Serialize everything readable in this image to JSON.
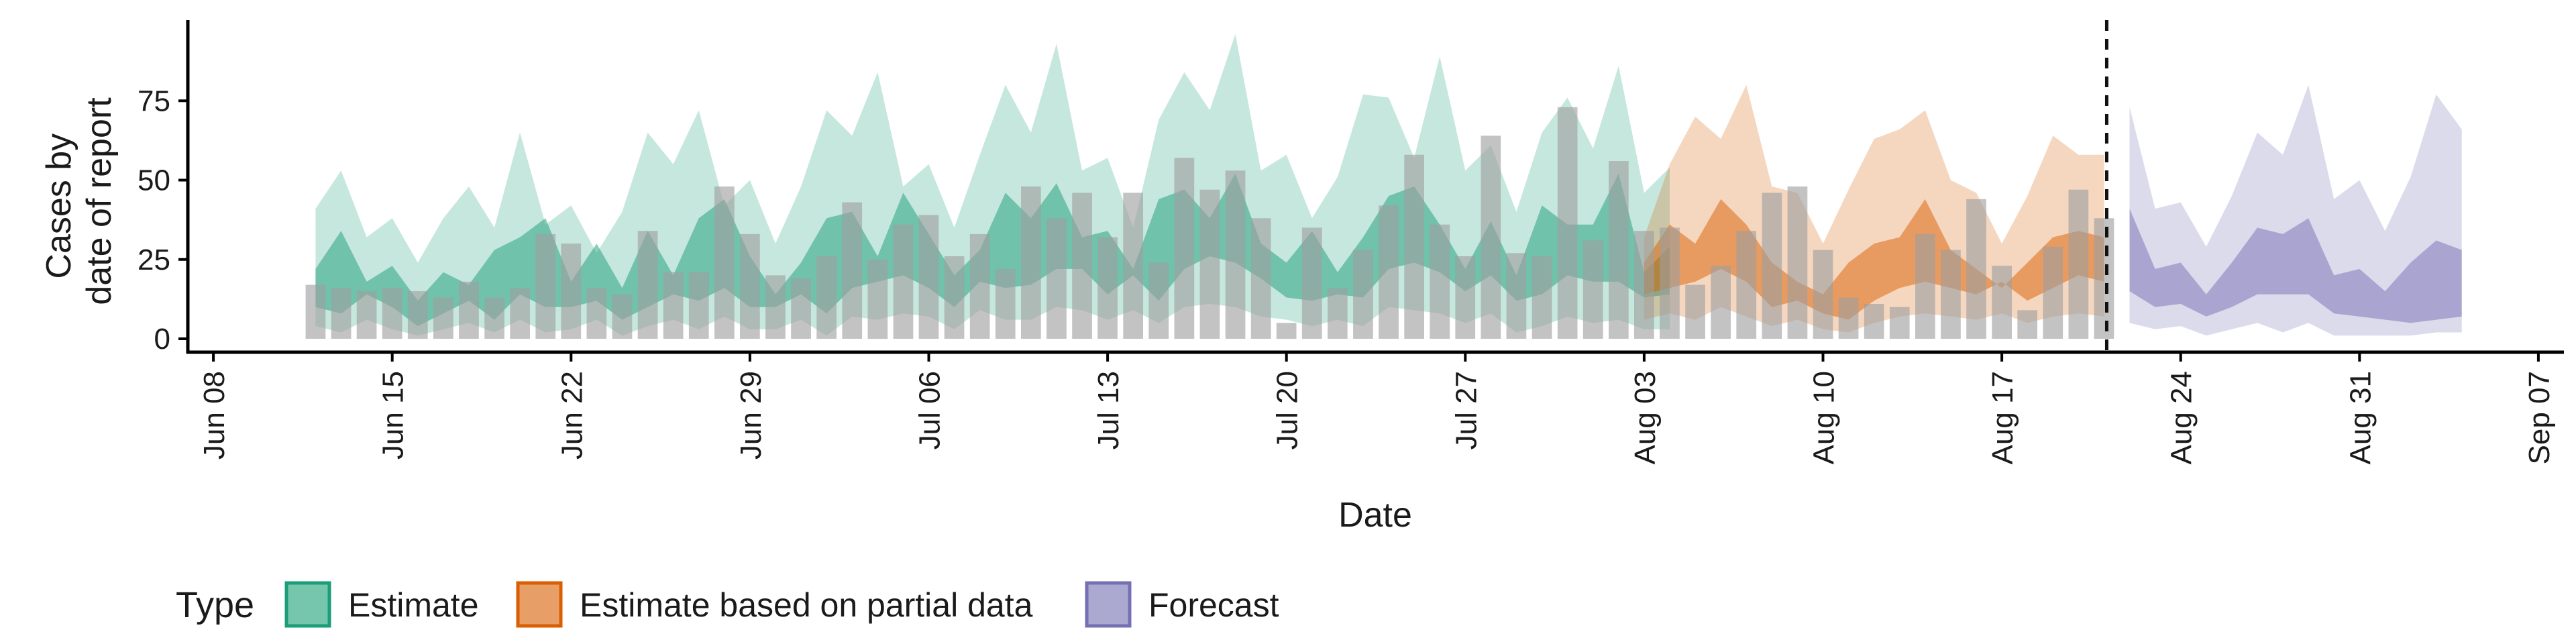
{
  "chart_data": {
    "type": "area",
    "xlabel": "Date",
    "ylabel": [
      "Cases by",
      "date of report"
    ],
    "ylim": [
      0,
      100
    ],
    "yticks": [
      0,
      25,
      50,
      75
    ],
    "xlim": [
      "2020-06-07",
      "2020-09-08"
    ],
    "xticks": [
      {
        "date": "2020-06-08",
        "label": "Jun 08"
      },
      {
        "date": "2020-06-15",
        "label": "Jun 15"
      },
      {
        "date": "2020-06-22",
        "label": "Jun 22"
      },
      {
        "date": "2020-06-29",
        "label": "Jun 29"
      },
      {
        "date": "2020-07-06",
        "label": "Jul 06"
      },
      {
        "date": "2020-07-13",
        "label": "Jul 13"
      },
      {
        "date": "2020-07-20",
        "label": "Jul 20"
      },
      {
        "date": "2020-07-27",
        "label": "Jul 27"
      },
      {
        "date": "2020-08-03",
        "label": "Aug 03"
      },
      {
        "date": "2020-08-10",
        "label": "Aug 10"
      },
      {
        "date": "2020-08-17",
        "label": "Aug 17"
      },
      {
        "date": "2020-08-24",
        "label": "Aug 24"
      },
      {
        "date": "2020-08-31",
        "label": "Aug 31"
      },
      {
        "date": "2020-09-07",
        "label": "Sep 07"
      }
    ],
    "vline_date": "2020-08-21",
    "grid": false,
    "legend": {
      "title": "Type",
      "position": "bottom",
      "entries": [
        "Estimate",
        "Estimate based on partial data",
        "Forecast"
      ]
    },
    "bars": {
      "start_date": "2020-06-12",
      "color": "#9e9e9e",
      "values": [
        17,
        16,
        15,
        16,
        15,
        13,
        18,
        13,
        16,
        33,
        30,
        16,
        14,
        34,
        21,
        21,
        48,
        33,
        20,
        19,
        26,
        43,
        25,
        36,
        39,
        26,
        33,
        22,
        48,
        38,
        46,
        32,
        46,
        24,
        57,
        47,
        53,
        38,
        5,
        35,
        16,
        28,
        42,
        58,
        36,
        26,
        64,
        27,
        26,
        73,
        31,
        56,
        34,
        35,
        17,
        23,
        34,
        46,
        48,
        28,
        13,
        11,
        10,
        33,
        28,
        44,
        23,
        9,
        29,
        47,
        38
      ]
    },
    "series": [
      {
        "name": "Estimate",
        "color": "#1b9e77",
        "start_date": "2020-06-12",
        "lo90": [
          4,
          2,
          6,
          3,
          1,
          3,
          5,
          2,
          6,
          2,
          3,
          6,
          1,
          4,
          6,
          3,
          7,
          3,
          3,
          6,
          1,
          7,
          6,
          8,
          7,
          3,
          9,
          6,
          6,
          10,
          9,
          6,
          9,
          5,
          10,
          11,
          10,
          7,
          6,
          4,
          6,
          4,
          10,
          9,
          8,
          5,
          8,
          2,
          4,
          7,
          5,
          6,
          3,
          3
        ],
        "lo50": [
          10,
          8,
          14,
          10,
          4,
          8,
          12,
          6,
          14,
          10,
          10,
          12,
          6,
          10,
          14,
          12,
          16,
          10,
          10,
          14,
          8,
          16,
          18,
          20,
          16,
          10,
          18,
          16,
          17,
          22,
          22,
          14,
          20,
          12,
          22,
          26,
          24,
          19,
          13,
          12,
          14,
          13,
          22,
          24,
          21,
          15,
          20,
          12,
          14,
          20,
          18,
          18,
          13,
          14
        ],
        "hi50": [
          22,
          34,
          18,
          23,
          12,
          21,
          17,
          28,
          32,
          38,
          18,
          30,
          16,
          34,
          20,
          38,
          44,
          26,
          14,
          24,
          38,
          40,
          26,
          46,
          33,
          20,
          28,
          46,
          38,
          49,
          32,
          34,
          22,
          44,
          47,
          38,
          52,
          30,
          24,
          34,
          21,
          32,
          45,
          48,
          36,
          22,
          37,
          20,
          42,
          36,
          36,
          52,
          21,
          29
        ],
        "hi90": [
          41,
          53,
          32,
          38,
          24,
          38,
          48,
          35,
          65,
          36,
          42,
          27,
          40,
          65,
          55,
          72,
          42,
          50,
          30,
          48,
          72,
          64,
          84,
          48,
          55,
          35,
          58,
          80,
          65,
          93,
          53,
          57,
          35,
          69,
          84,
          72,
          96,
          53,
          58,
          38,
          51,
          77,
          76,
          57,
          89,
          53,
          61,
          40,
          65,
          76,
          60,
          86,
          46,
          54
        ]
      },
      {
        "name": "Estimate based on partial data",
        "color": "#d95f02",
        "start_date": "2020-08-03",
        "lo90": [
          6,
          8,
          6,
          10,
          7,
          4,
          6,
          3,
          2,
          5,
          7,
          8,
          7,
          6,
          8,
          5,
          7,
          8,
          7
        ],
        "lo50": [
          14,
          16,
          18,
          22,
          18,
          10,
          12,
          8,
          6,
          12,
          16,
          18,
          16,
          14,
          18,
          12,
          16,
          20,
          18
        ],
        "hi50": [
          24,
          36,
          30,
          44,
          36,
          24,
          18,
          14,
          24,
          30,
          32,
          44,
          28,
          22,
          16,
          24,
          32,
          34,
          32
        ],
        "hi90": [
          32,
          55,
          70,
          63,
          80,
          48,
          46,
          30,
          47,
          63,
          66,
          72,
          50,
          46,
          30,
          45,
          64,
          58,
          58
        ]
      },
      {
        "name": "Forecast",
        "color": "#7570b3",
        "start_date": "2020-08-22",
        "lo90": [
          5,
          3,
          4,
          1,
          3,
          5,
          2,
          5,
          1,
          1,
          1,
          1,
          2,
          2
        ],
        "lo50": [
          15,
          10,
          11,
          7,
          10,
          14,
          14,
          14,
          8,
          7,
          6,
          5,
          6,
          7
        ],
        "hi50": [
          41,
          22,
          24,
          14,
          24,
          35,
          33,
          38,
          20,
          22,
          15,
          24,
          31,
          28
        ],
        "hi90": [
          73,
          41,
          43,
          29,
          45,
          65,
          58,
          80,
          44,
          50,
          34,
          51,
          77,
          66
        ]
      }
    ]
  }
}
